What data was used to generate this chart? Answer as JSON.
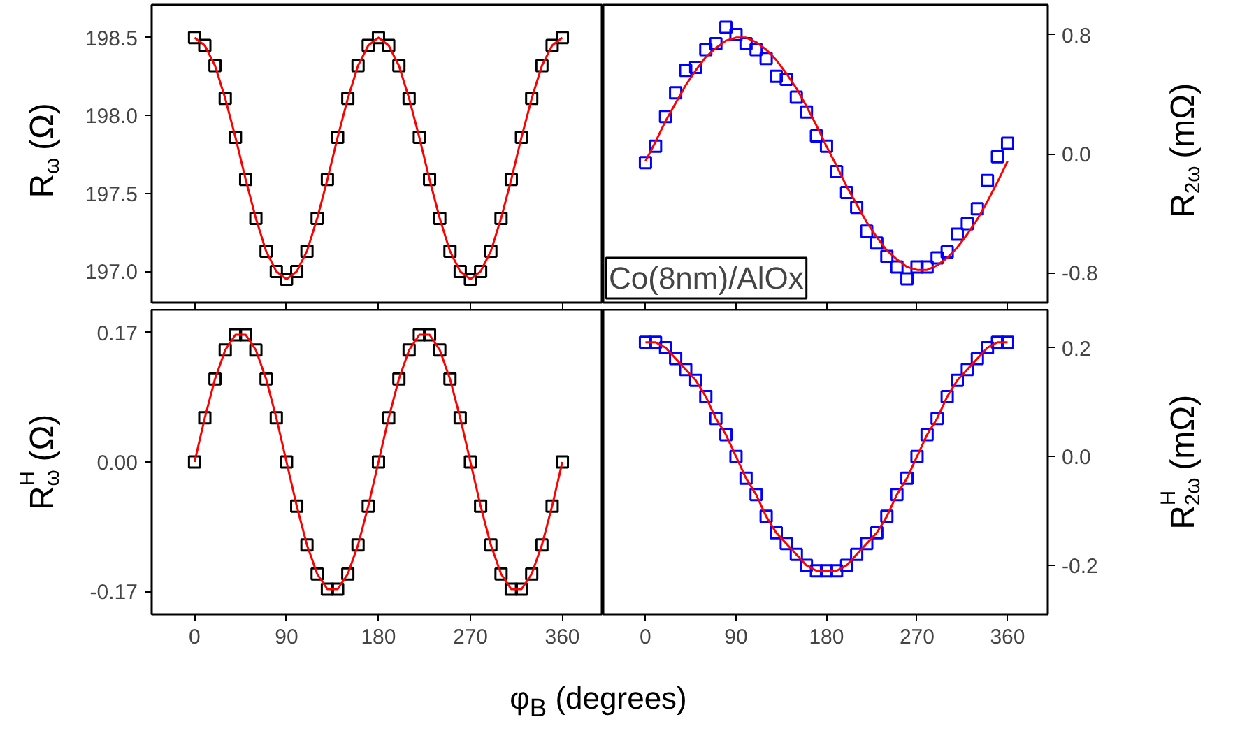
{
  "chart_data": [
    {
      "type": "scatter",
      "ylabel": "R$_{ω}$ (Ω)",
      "tick_labels": "y",
      "xlim": [
        -42,
        400
      ],
      "xticks": [
        0,
        90,
        180,
        270,
        360
      ],
      "ylim": [
        196.8,
        198.71
      ],
      "yticks": [
        {
          "value": 197.0,
          "label": "197.0"
        },
        {
          "value": 197.5,
          "label": "197.5"
        },
        {
          "value": 198.0,
          "label": "198.0"
        },
        {
          "value": 198.5,
          "label": "198.5"
        }
      ],
      "x": [
        0,
        10,
        20,
        30,
        40,
        50,
        60,
        70,
        80,
        90,
        100,
        110,
        120,
        130,
        140,
        150,
        160,
        170,
        180,
        190,
        200,
        210,
        220,
        230,
        240,
        250,
        260,
        270,
        280,
        290,
        300,
        310,
        320,
        330,
        340,
        350,
        360
      ],
      "series": [
        {
          "marker": "square",
          "color": "#000000",
          "values": [
            198.5,
            198.45,
            198.32,
            198.11,
            197.86,
            197.59,
            197.34,
            197.13,
            197.0,
            196.95,
            197.0,
            197.13,
            197.34,
            197.59,
            197.86,
            198.11,
            198.32,
            198.45,
            198.5,
            198.45,
            198.32,
            198.11,
            197.86,
            197.59,
            197.34,
            197.13,
            197.0,
            196.95,
            197.0,
            197.13,
            197.34,
            197.59,
            197.86,
            198.11,
            198.32,
            198.45,
            198.5
          ]
        },
        {
          "type": "line",
          "color": "#ff0000",
          "values": [
            198.5,
            198.45,
            198.32,
            198.11,
            197.86,
            197.59,
            197.34,
            197.13,
            197.0,
            196.95,
            197.0,
            197.13,
            197.34,
            197.59,
            197.86,
            198.11,
            198.32,
            198.45,
            198.5,
            198.45,
            198.32,
            198.11,
            197.86,
            197.59,
            197.34,
            197.13,
            197.0,
            196.95,
            197.0,
            197.13,
            197.34,
            197.59,
            197.86,
            198.11,
            198.32,
            198.45,
            198.5
          ]
        }
      ]
    },
    {
      "type": "scatter",
      "y2label": "R$_{2ω}$ (mΩ)",
      "annotations": [
        "Co(8nm)/AlOx"
      ],
      "tick_labels": "y",
      "xlim": [
        -42,
        400
      ],
      "xticks": [
        0,
        90,
        180,
        270,
        360
      ],
      "y2lim": [
        -1.0,
        1.0
      ],
      "y2ticks": [
        {
          "value": -0.8,
          "label": "-0.8"
        },
        {
          "value": 0.0,
          "label": "0.0"
        },
        {
          "value": 0.8,
          "label": "0.8"
        }
      ],
      "x": [
        0,
        10,
        20,
        30,
        40,
        50,
        60,
        70,
        80,
        90,
        100,
        110,
        120,
        130,
        140,
        150,
        160,
        170,
        180,
        190,
        200,
        210,
        220,
        230,
        240,
        250,
        260,
        270,
        280,
        290,
        300,
        310,
        320,
        330,
        340,
        350,
        360
      ],
      "series": [
        {
          "marker": "square",
          "axis": "y2",
          "color": "#0000ff",
          "values": [
            -0.06,
            0.05,
            0.25,
            0.41,
            0.56,
            0.58,
            0.7,
            0.74,
            0.85,
            0.8,
            0.74,
            0.7,
            0.64,
            0.52,
            0.5,
            0.38,
            0.28,
            0.12,
            0.05,
            -0.12,
            -0.26,
            -0.36,
            -0.52,
            -0.6,
            -0.69,
            -0.76,
            -0.84,
            -0.76,
            -0.76,
            -0.7,
            -0.66,
            -0.54,
            -0.47,
            -0.37,
            -0.18,
            -0.02,
            0.07
          ]
        },
        {
          "type": "line",
          "axis": "y2",
          "color": "#ff0000",
          "values": [
            -0.05,
            0.08,
            0.22,
            0.34,
            0.46,
            0.56,
            0.65,
            0.71,
            0.76,
            0.78,
            0.78,
            0.75,
            0.7,
            0.63,
            0.54,
            0.44,
            0.32,
            0.19,
            0.05,
            -0.08,
            -0.22,
            -0.34,
            -0.46,
            -0.56,
            -0.65,
            -0.71,
            -0.76,
            -0.78,
            -0.78,
            -0.75,
            -0.7,
            -0.63,
            -0.54,
            -0.44,
            -0.32,
            -0.19,
            -0.05
          ]
        }
      ]
    },
    {
      "type": "scatter",
      "ylabel": "R$^{H}$$_{ω}$ (Ω)",
      "xlabel": "φ$_{B}$ (degrees)",
      "xlim": [
        -42,
        400
      ],
      "xticks": [
        0,
        90,
        180,
        270,
        360
      ],
      "ylim": [
        -0.2,
        0.2
      ],
      "yticks": [
        {
          "value": -0.17,
          "label": "-0.17"
        },
        {
          "value": 0.0,
          "label": "0.00"
        },
        {
          "value": 0.17,
          "label": "0.17"
        }
      ],
      "x": [
        0,
        10,
        20,
        30,
        40,
        50,
        60,
        70,
        80,
        90,
        100,
        110,
        120,
        130,
        140,
        150,
        160,
        170,
        180,
        190,
        200,
        210,
        220,
        230,
        240,
        250,
        260,
        270,
        280,
        290,
        300,
        310,
        320,
        330,
        340,
        350,
        360
      ],
      "series": [
        {
          "marker": "square",
          "color": "#000000",
          "values": [
            0,
            0.058,
            0.109,
            0.147,
            0.167,
            0.167,
            0.147,
            0.109,
            0.058,
            0,
            -0.058,
            -0.109,
            -0.147,
            -0.167,
            -0.167,
            -0.147,
            -0.109,
            -0.058,
            0,
            0.058,
            0.109,
            0.147,
            0.167,
            0.167,
            0.147,
            0.109,
            0.058,
            0,
            -0.058,
            -0.109,
            -0.147,
            -0.167,
            -0.167,
            -0.147,
            -0.109,
            -0.058,
            0
          ]
        },
        {
          "type": "line",
          "color": "#ff0000",
          "values": [
            0,
            0.058,
            0.109,
            0.147,
            0.167,
            0.167,
            0.147,
            0.109,
            0.058,
            0,
            -0.058,
            -0.109,
            -0.147,
            -0.167,
            -0.167,
            -0.147,
            -0.109,
            -0.058,
            0,
            0.058,
            0.109,
            0.147,
            0.167,
            0.167,
            0.147,
            0.109,
            0.058,
            0,
            -0.058,
            -0.109,
            -0.147,
            -0.167,
            -0.167,
            -0.147,
            -0.109,
            -0.058,
            0
          ]
        }
      ]
    },
    {
      "type": "scatter",
      "y2label": "R$^{H}$$_{2ω}$ (mΩ)",
      "xlim": [
        -42,
        400
      ],
      "xticks": [
        0,
        90,
        180,
        270,
        360
      ],
      "y2lim": [
        -0.29,
        0.27
      ],
      "y2ticks": [
        {
          "value": -0.2,
          "label": "-0.2"
        },
        {
          "value": 0.0,
          "label": "0.0"
        },
        {
          "value": 0.2,
          "label": "0.2"
        }
      ],
      "x": [
        0,
        10,
        20,
        30,
        40,
        50,
        60,
        70,
        80,
        90,
        100,
        110,
        120,
        130,
        140,
        150,
        160,
        170,
        180,
        190,
        200,
        210,
        220,
        230,
        240,
        250,
        260,
        270,
        280,
        290,
        300,
        310,
        320,
        330,
        340,
        350,
        360
      ],
      "series": [
        {
          "marker": "square",
          "axis": "y2",
          "color": "#0000ff",
          "values": [
            0.21,
            0.21,
            0.2,
            0.18,
            0.16,
            0.14,
            0.11,
            0.07,
            0.04,
            0.0,
            -0.04,
            -0.07,
            -0.11,
            -0.14,
            -0.16,
            -0.18,
            -0.2,
            -0.21,
            -0.21,
            -0.21,
            -0.2,
            -0.18,
            -0.16,
            -0.14,
            -0.11,
            -0.07,
            -0.04,
            0.0,
            0.04,
            0.07,
            0.11,
            0.14,
            0.16,
            0.18,
            0.2,
            0.21,
            0.21
          ]
        },
        {
          "type": "line",
          "axis": "y2",
          "color": "#ff0000",
          "values": [
            0.21,
            0.21,
            0.2,
            0.18,
            0.16,
            0.14,
            0.11,
            0.07,
            0.04,
            0.0,
            -0.04,
            -0.07,
            -0.11,
            -0.14,
            -0.16,
            -0.18,
            -0.2,
            -0.21,
            -0.21,
            -0.21,
            -0.2,
            -0.18,
            -0.16,
            -0.14,
            -0.11,
            -0.07,
            -0.04,
            0.0,
            0.04,
            0.07,
            0.11,
            0.14,
            0.16,
            0.18,
            0.2,
            0.21,
            0.21
          ]
        }
      ]
    }
  ]
}
